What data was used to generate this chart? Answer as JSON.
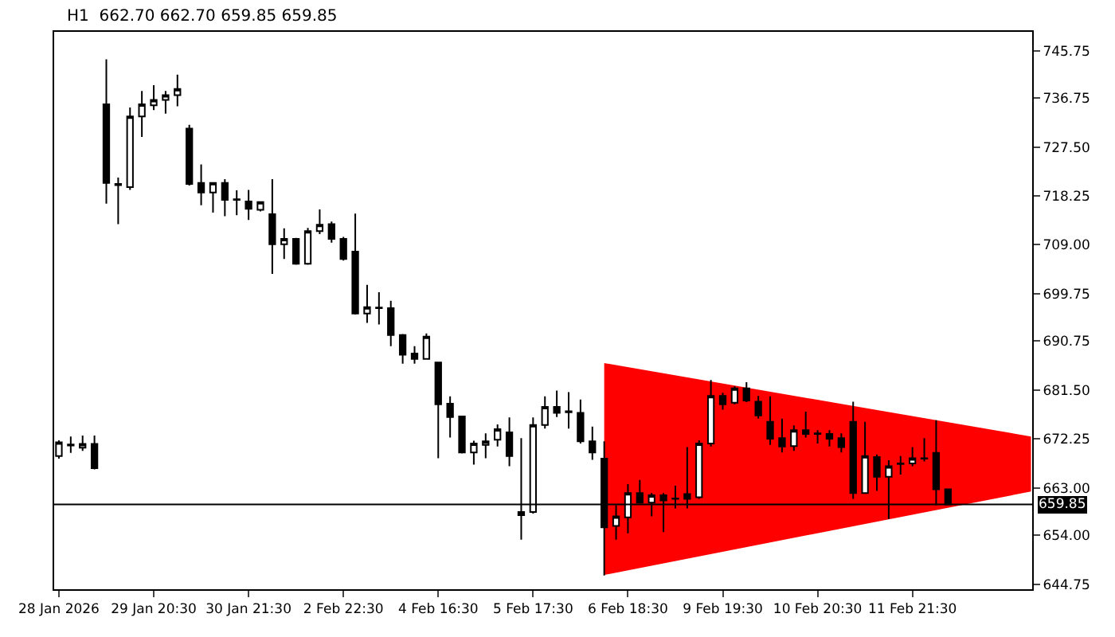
{
  "chart_data": {
    "type": "candlestick",
    "title": "H1  662.70 662.70 659.85 659.85",
    "categories": [
      "28 Jan 2026",
      null,
      null,
      null,
      null,
      null,
      null,
      null,
      "29 Jan 20:30",
      null,
      null,
      null,
      null,
      null,
      null,
      null,
      "30 Jan 21:30",
      null,
      null,
      null,
      null,
      null,
      null,
      null,
      "2 Feb 22:30",
      null,
      null,
      null,
      null,
      null,
      null,
      null,
      "4 Feb 16:30",
      null,
      null,
      null,
      null,
      null,
      null,
      null,
      "5 Feb 17:30",
      null,
      null,
      null,
      null,
      null,
      null,
      null,
      "6 Feb 18:30",
      null,
      null,
      null,
      null,
      null,
      null,
      null,
      "9 Feb 19:30",
      null,
      null,
      null,
      null,
      null,
      null,
      null,
      "10 Feb 20:30",
      null,
      null,
      null,
      null,
      null,
      null,
      null,
      "11 Feb 21:30",
      null,
      null,
      null,
      null,
      null,
      null,
      null,
      null,
      null,
      null
    ],
    "ohlc": [
      [
        669.0,
        672.0,
        668.5,
        671.6
      ],
      [
        671.0,
        672.7,
        669.6,
        671.2
      ],
      [
        670.6,
        672.9,
        670.0,
        671.3
      ],
      [
        671.3,
        672.9,
        666.5,
        666.7
      ],
      [
        735.6,
        744.1,
        716.8,
        720.7
      ],
      [
        720.5,
        721.7,
        712.9,
        720.3
      ],
      [
        719.9,
        735.0,
        719.4,
        733.3
      ],
      [
        733.3,
        738.1,
        729.4,
        735.6
      ],
      [
        735.4,
        739.2,
        734.5,
        736.4
      ],
      [
        736.4,
        738.1,
        733.8,
        737.3
      ],
      [
        737.3,
        741.2,
        735.2,
        738.5
      ],
      [
        731.0,
        731.7,
        720.2,
        720.5
      ],
      [
        720.7,
        724.2,
        716.5,
        718.9
      ],
      [
        718.9,
        720.7,
        715.1,
        720.7
      ],
      [
        720.7,
        721.4,
        714.4,
        717.5
      ],
      [
        717.6,
        719.3,
        714.6,
        717.5
      ],
      [
        717.2,
        719.4,
        713.7,
        715.8
      ],
      [
        715.6,
        717.2,
        715.3,
        717.1
      ],
      [
        714.8,
        721.4,
        703.5,
        709.1
      ],
      [
        709.1,
        712.1,
        706.3,
        710.1
      ],
      [
        710.1,
        710.3,
        705.2,
        705.4
      ],
      [
        705.4,
        712.2,
        705.2,
        711.6
      ],
      [
        711.6,
        715.7,
        711.0,
        712.8
      ],
      [
        712.9,
        713.4,
        709.4,
        710.1
      ],
      [
        710.1,
        710.5,
        706.0,
        706.3
      ],
      [
        707.7,
        714.9,
        695.8,
        696.0
      ],
      [
        696.0,
        701.4,
        694.2,
        697.2
      ],
      [
        697.1,
        700.0,
        693.9,
        697.0
      ],
      [
        697.0,
        698.4,
        689.8,
        691.9
      ],
      [
        691.9,
        692.1,
        686.5,
        688.2
      ],
      [
        688.4,
        689.8,
        686.5,
        687.4
      ],
      [
        687.4,
        692.2,
        687.4,
        691.6
      ],
      [
        686.7,
        686.8,
        668.6,
        678.8
      ],
      [
        678.9,
        680.3,
        672.5,
        676.4
      ],
      [
        676.5,
        676.5,
        669.5,
        669.7
      ],
      [
        669.7,
        671.9,
        667.4,
        671.4
      ],
      [
        671.1,
        673.3,
        668.6,
        671.8
      ],
      [
        672.1,
        675.0,
        670.8,
        674.1
      ],
      [
        673.5,
        676.3,
        667.1,
        669.0
      ],
      [
        658.4,
        672.4,
        653.2,
        657.8
      ],
      [
        658.4,
        676.3,
        658.1,
        674.9
      ],
      [
        674.9,
        680.3,
        674.2,
        678.3
      ],
      [
        678.3,
        681.4,
        676.4,
        677.2
      ],
      [
        677.5,
        681.1,
        674.2,
        677.3
      ],
      [
        677.2,
        679.7,
        671.4,
        671.8
      ],
      [
        671.8,
        674.6,
        668.3,
        669.7
      ],
      [
        668.5,
        671.8,
        646.4,
        655.5
      ],
      [
        655.8,
        659.7,
        653.2,
        657.6
      ],
      [
        657.4,
        663.7,
        654.4,
        662.0
      ],
      [
        662.0,
        664.5,
        660.0,
        660.2
      ],
      [
        660.2,
        662.0,
        657.6,
        661.6
      ],
      [
        661.6,
        662.0,
        654.6,
        660.6
      ],
      [
        661.0,
        663.4,
        659.1,
        660.9
      ],
      [
        661.8,
        670.7,
        659.1,
        660.9
      ],
      [
        661.2,
        672.0,
        660.9,
        671.4
      ],
      [
        671.4,
        683.4,
        670.8,
        680.4
      ],
      [
        680.4,
        681.0,
        677.8,
        678.8
      ],
      [
        679.1,
        682.2,
        678.8,
        681.8
      ],
      [
        681.8,
        683.0,
        679.2,
        679.5
      ],
      [
        679.3,
        680.4,
        676.1,
        676.7
      ],
      [
        675.5,
        680.3,
        671.1,
        672.3
      ],
      [
        672.4,
        676.1,
        669.7,
        670.8
      ],
      [
        670.9,
        674.8,
        670.0,
        673.9
      ],
      [
        673.9,
        677.4,
        672.5,
        673.2
      ],
      [
        673.3,
        673.9,
        671.4,
        673.2
      ],
      [
        673.2,
        673.9,
        670.8,
        672.3
      ],
      [
        672.4,
        673.3,
        669.7,
        670.7
      ],
      [
        675.5,
        679.3,
        660.9,
        662.0
      ],
      [
        662.0,
        675.5,
        662.0,
        669.0
      ],
      [
        668.8,
        669.3,
        662.4,
        665.1
      ],
      [
        665.1,
        668.2,
        657.1,
        667.1
      ],
      [
        667.6,
        669.0,
        665.5,
        667.5
      ],
      [
        667.6,
        670.7,
        667.1,
        668.6
      ],
      [
        668.5,
        672.4,
        668.0,
        668.6
      ],
      [
        669.6,
        675.8,
        659.7,
        662.7
      ],
      [
        662.7,
        662.7,
        659.85,
        659.85
      ],
      null,
      null,
      null,
      null,
      null,
      null,
      null
    ],
    "series": [
      {
        "type": "area",
        "color": "#ff0000",
        "values": [
          null,
          null,
          null,
          null,
          null,
          null,
          null,
          null,
          null,
          null,
          null,
          null,
          null,
          null,
          null,
          null,
          null,
          null,
          null,
          null,
          null,
          null,
          null,
          null,
          null,
          null,
          null,
          null,
          null,
          null,
          null,
          null,
          null,
          null,
          null,
          null,
          null,
          null,
          null,
          null,
          null,
          null,
          null,
          null,
          null,
          null,
          null,
          null,
          null,
          null,
          null,
          null,
          null,
          null,
          null,
          null,
          null,
          null,
          null,
          null,
          null,
          null,
          null,
          null,
          null,
          null,
          null,
          null,
          null,
          null,
          null,
          null,
          null,
          null,
          null,
          null,
          null,
          null,
          null,
          null,
          null,
          null,
          null
        ],
        "upper": [
          null,
          null,
          null,
          null,
          null,
          null,
          null,
          null,
          null,
          null,
          null,
          null,
          null,
          null,
          null,
          null,
          null,
          null,
          null,
          null,
          null,
          null,
          null,
          null,
          null,
          null,
          null,
          null,
          null,
          null,
          null,
          null,
          null,
          null,
          null,
          null,
          null,
          null,
          null,
          null,
          null,
          null,
          null,
          null,
          null,
          null,
          686.6,
          null,
          null,
          null,
          null,
          null,
          null,
          null,
          null,
          null,
          null,
          null,
          null,
          null,
          null,
          null,
          null,
          null,
          null,
          null,
          null,
          null,
          null,
          null,
          null,
          null,
          null,
          null,
          null,
          null,
          null,
          null,
          null,
          null,
          null,
          null,
          672.7
        ],
        "lower": [
          null,
          null,
          null,
          null,
          null,
          null,
          null,
          null,
          null,
          null,
          null,
          null,
          null,
          null,
          null,
          null,
          null,
          null,
          null,
          null,
          null,
          null,
          null,
          null,
          null,
          null,
          null,
          null,
          null,
          null,
          null,
          null,
          null,
          null,
          null,
          null,
          null,
          null,
          null,
          null,
          null,
          null,
          null,
          null,
          null,
          null,
          646.5,
          null,
          null,
          null,
          null,
          null,
          null,
          null,
          null,
          null,
          null,
          null,
          null,
          null,
          null,
          null,
          null,
          null,
          null,
          null,
          null,
          null,
          null,
          null,
          null,
          null,
          null,
          null,
          null,
          null,
          null,
          null,
          null,
          null,
          null,
          null,
          662.3
        ]
      }
    ],
    "ylim": [
      643.8,
      749.3
    ],
    "yticks": [
      745.75,
      736.75,
      {
        "value": 727.5,
        "label": "727.50"
      },
      718.25,
      {
        "value": 709,
        "label": "709.00"
      },
      699.75,
      690.75,
      {
        "value": 681.5,
        "label": "681.50"
      },
      672.25,
      {
        "value": 663,
        "label": "663.00"
      },
      {
        "value": 654,
        "label": "654.00"
      },
      644.75
    ],
    "ref_lines": [
      {
        "axis": "y",
        "value": 659.85,
        "label": "659.85",
        "color": "#000000"
      }
    ],
    "grid": false
  }
}
